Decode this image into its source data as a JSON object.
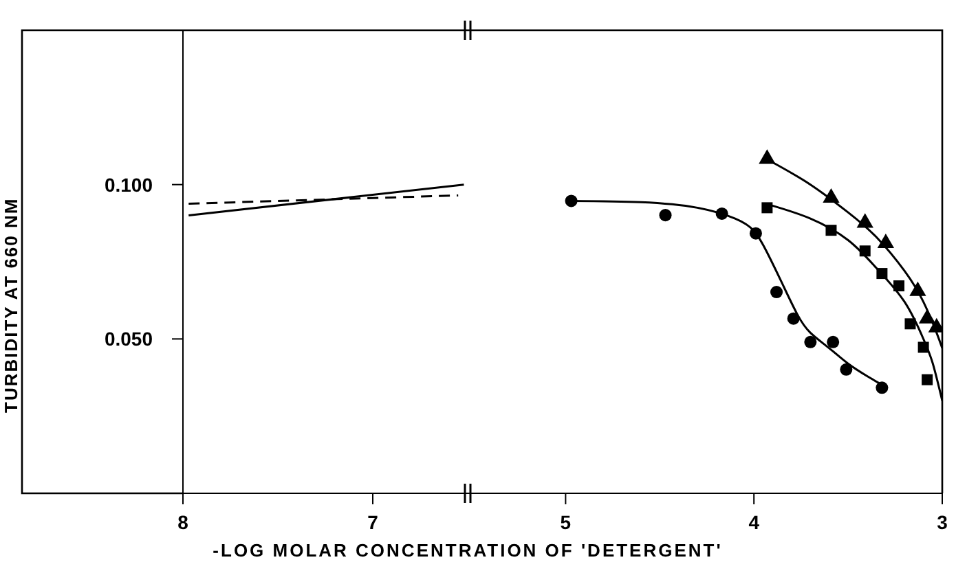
{
  "chart_data": [
    {
      "type": "line",
      "ylabel": "TURBIDITY AT 660 NM",
      "xlim": [
        8,
        6.5
      ],
      "xticks": [
        8,
        7
      ],
      "ylim": [
        0,
        0.15
      ],
      "yticks": [
        {
          "value": 0.05,
          "label": "0.050"
        },
        {
          "value": 0.1,
          "label": "0.100"
        }
      ],
      "grid": false,
      "legend": false,
      "series": [
        {
          "color": "#000000",
          "line_style": "solid",
          "x": [
            7.97,
            6.52
          ],
          "values": [
            0.09,
            0.1
          ]
        },
        {
          "color": "#000000",
          "line_style": "dashed",
          "x": [
            7.97,
            6.55
          ],
          "values": [
            0.0938,
            0.0965
          ]
        }
      ]
    },
    {
      "type": "scatter",
      "xlabel": "-LOG MOLAR CONCENTRATION OF 'DETERGENT'",
      "xlim": [
        5.52,
        3
      ],
      "xticks": [
        5,
        4,
        3
      ],
      "ylim": [
        0,
        0.15
      ],
      "tick_labels": "x",
      "grid": false,
      "legend": false,
      "series": [
        {
          "color": "#000000",
          "marker": "circle",
          "x": [
            4.97,
            4.47,
            4.17,
            3.99,
            3.88,
            3.79,
            3.7,
            3.58,
            3.51,
            3.32
          ],
          "values": [
            0.0947,
            0.0901,
            0.0906,
            0.0842,
            0.0652,
            0.0566,
            0.049,
            0.049,
            0.0401,
            0.0342
          ]
        },
        {
          "color": "#000000",
          "marker": "square",
          "x": [
            3.93,
            3.59,
            3.41,
            3.32,
            3.23,
            3.17,
            3.1,
            3.08
          ],
          "values": [
            0.0925,
            0.0852,
            0.0785,
            0.0712,
            0.0672,
            0.0549,
            0.0473,
            0.0368
          ]
        },
        {
          "color": "#000000",
          "marker": "triangle",
          "x": [
            3.93,
            3.59,
            3.41,
            3.3,
            3.13,
            3.08,
            3.03
          ],
          "values": [
            0.1083,
            0.0957,
            0.0876,
            0.081,
            0.0655,
            0.0566,
            0.0537
          ]
        },
        {
          "type": "line",
          "color": "#000000",
          "line_style": "solid",
          "x": [
            4.97,
            4.6,
            4.3,
            4.1,
            4.0,
            3.93,
            3.85,
            3.77,
            3.7,
            3.6,
            3.5,
            3.4,
            3.33
          ],
          "values": [
            0.0947,
            0.0943,
            0.0925,
            0.089,
            0.085,
            0.078,
            0.068,
            0.058,
            0.052,
            0.047,
            0.042,
            0.038,
            0.0355
          ]
        },
        {
          "type": "line",
          "color": "#000000",
          "line_style": "solid",
          "x": [
            3.92,
            3.7,
            3.5,
            3.35,
            3.2,
            3.1,
            3.05,
            3.0
          ],
          "values": [
            0.0935,
            0.089,
            0.082,
            0.073,
            0.062,
            0.05,
            0.042,
            0.03
          ]
        },
        {
          "type": "line",
          "color": "#000000",
          "line_style": "solid",
          "x": [
            3.91,
            3.7,
            3.5,
            3.35,
            3.2,
            3.1,
            3.03,
            3.0
          ],
          "values": [
            0.1075,
            0.1,
            0.091,
            0.083,
            0.072,
            0.062,
            0.052,
            0.047
          ]
        }
      ]
    }
  ]
}
